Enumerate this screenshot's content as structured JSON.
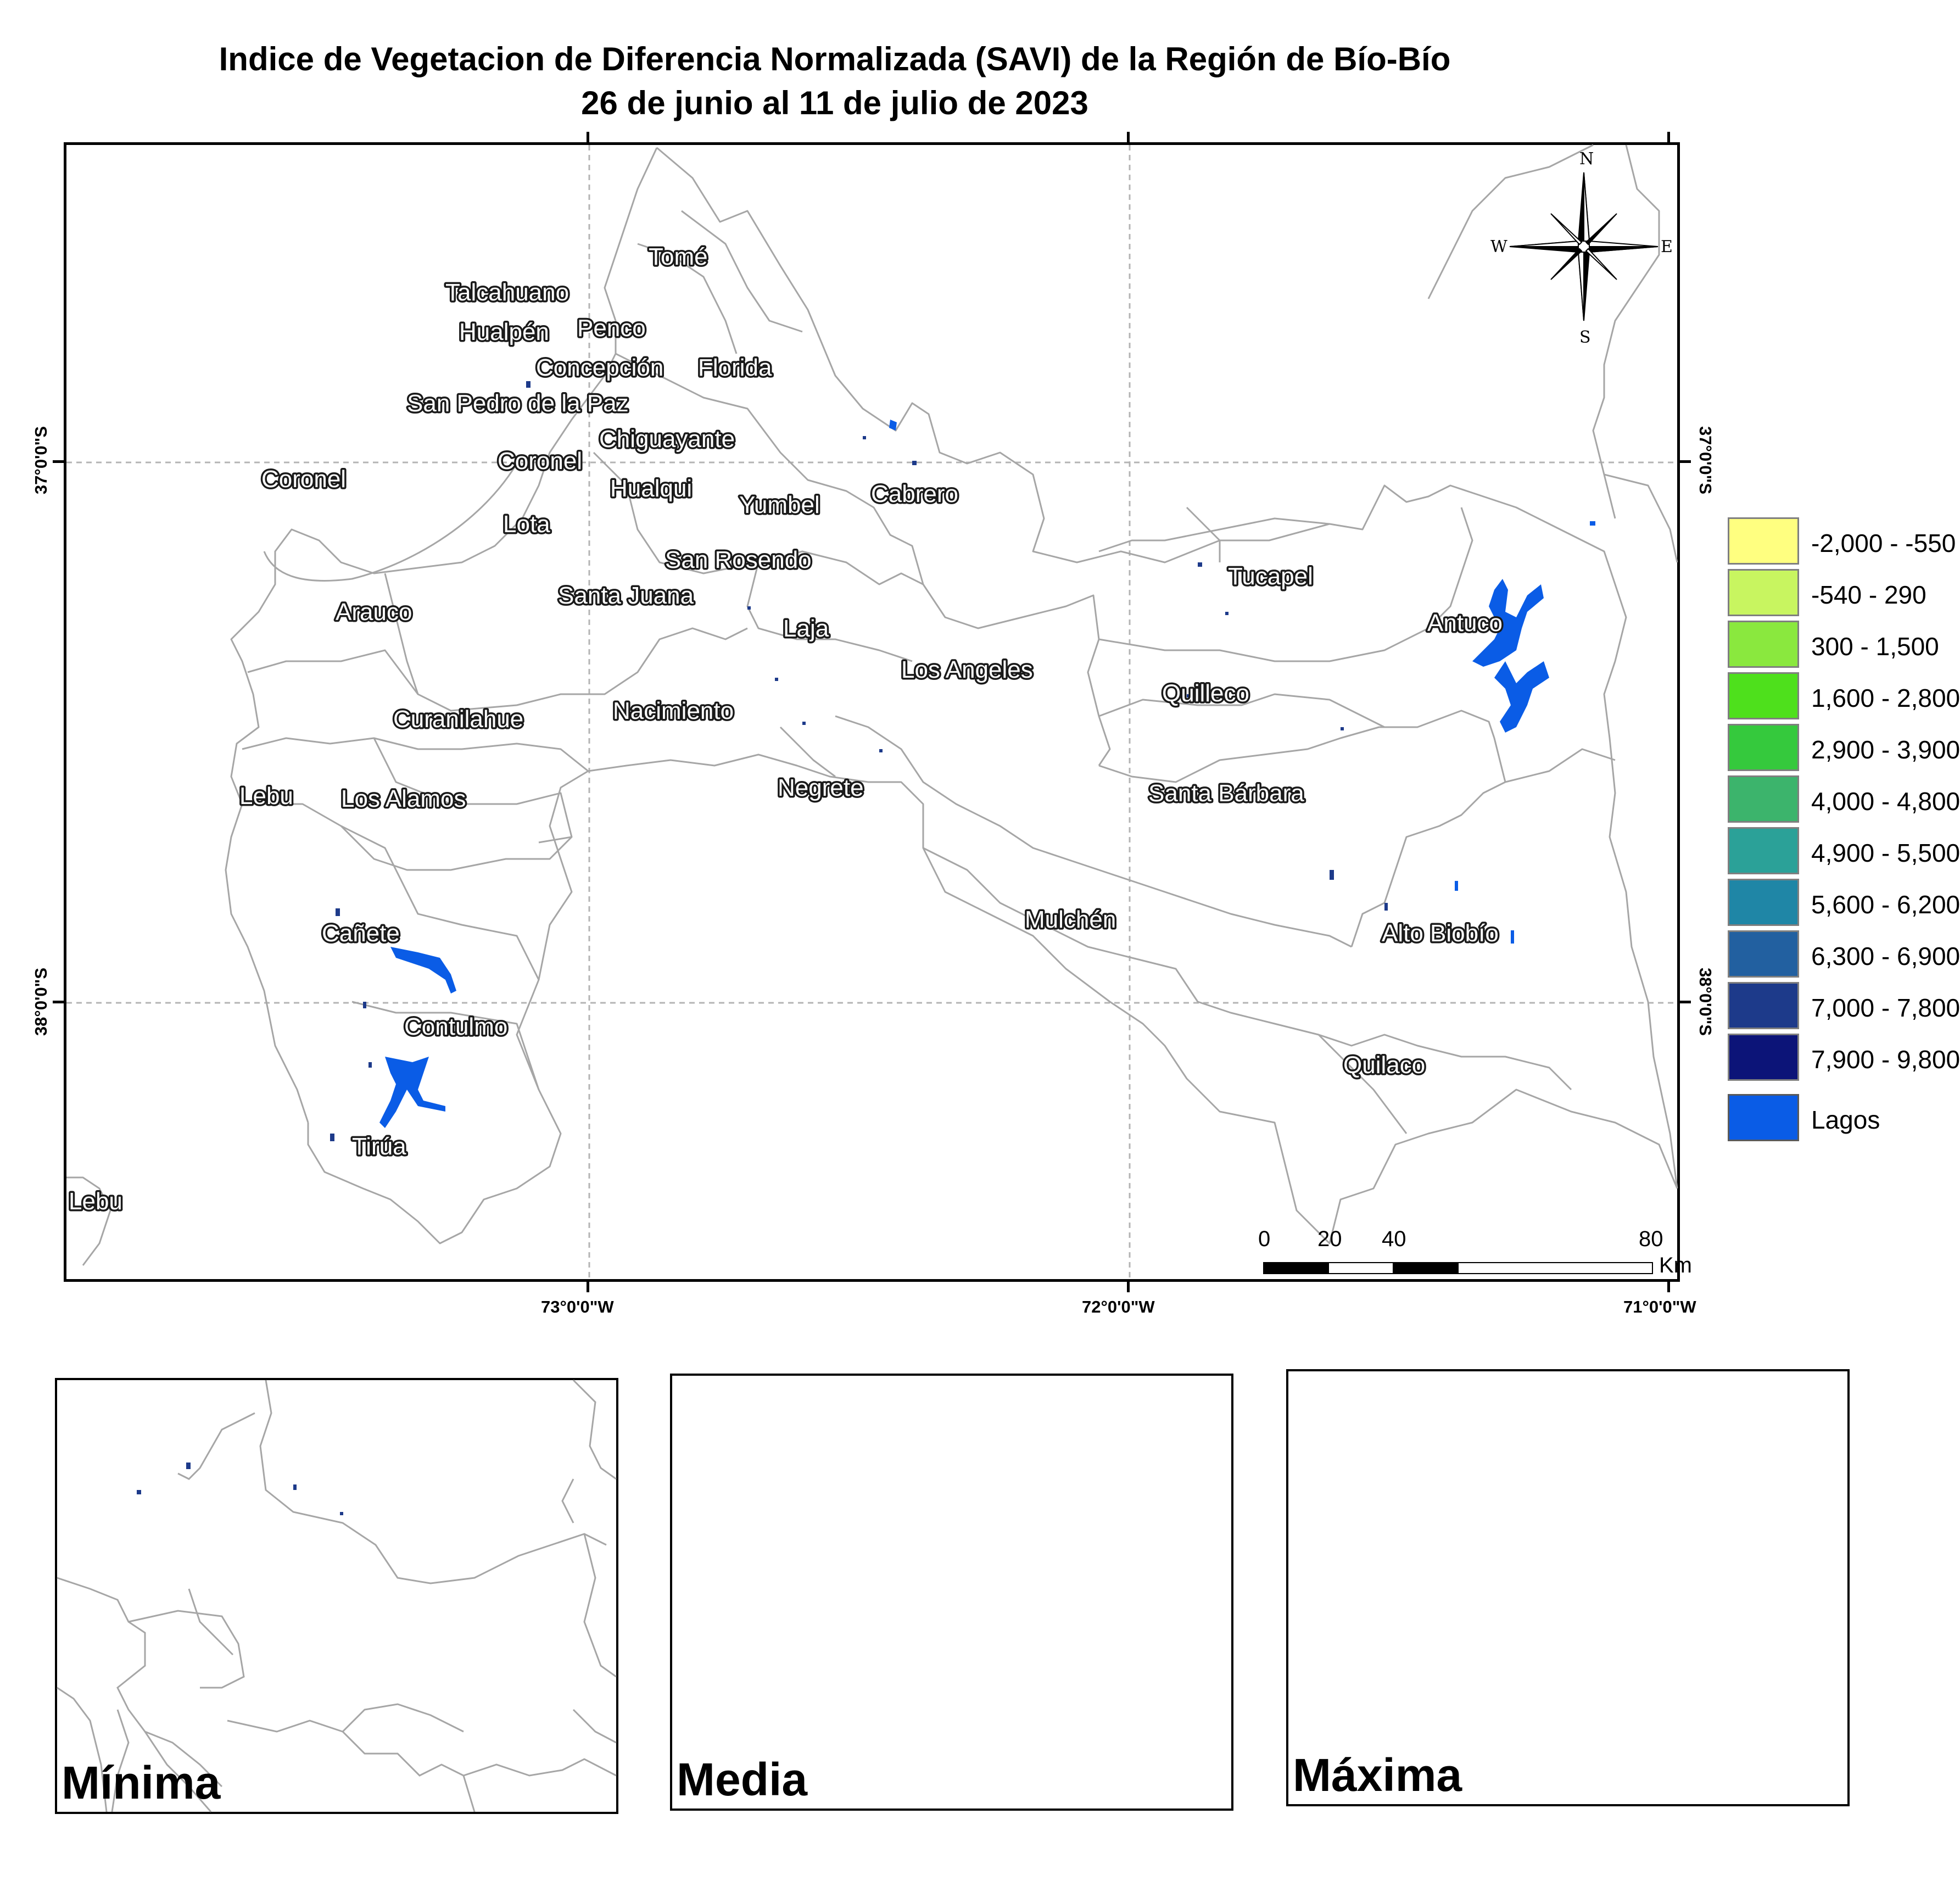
{
  "title": {
    "line1": "Indice de Vegetacion de Diferencia Normalizada (SAVI) de la Región de Bío-Bío",
    "line2": "26 de junio al 11 de julio de 2023"
  },
  "coordinates": {
    "top_lat": "37°0'0\"S",
    "bottom_lat": "38°0'0\"S",
    "lon_west": "73°0'0\"W",
    "lon_mid": "72°0'0\"W",
    "lon_east": "71°0'0\"W"
  },
  "north_arrow": {
    "n": "N",
    "s": "S",
    "e": "E",
    "w": "W"
  },
  "scale_bar": {
    "labels": [
      "0",
      "20",
      "40",
      "80"
    ],
    "unit": "Km"
  },
  "communes": [
    "Tomé",
    "Talcahuano",
    "Penco",
    "Hualpén",
    "Concepción",
    "Florida",
    "San Pedro de la Paz",
    "Chiguayante",
    "Coronel",
    "Coronel",
    "Hualqui",
    "Yumbel",
    "Cabrero",
    "Lota",
    "San Rosendo",
    "Tucapel",
    "Santa Juana",
    "Arauco",
    "Laja",
    "Antuco",
    "Los Angeles",
    "Nacimiento",
    "Quilleco",
    "Curanilahue",
    "Lebu",
    "Los Alamos",
    "Negrete",
    "Santa Bárbara",
    "Mulchén",
    "Cañete",
    "Alto Biobío",
    "Contulmo",
    "Quilaco",
    "Tirúa",
    "Lebu"
  ],
  "legend": [
    {
      "label": "-2,000 - -550",
      "color": "#ffff80"
    },
    {
      "label": "-540 - 290",
      "color": "#c8f560"
    },
    {
      "label": "300 - 1,500",
      "color": "#8ae83e"
    },
    {
      "label": "1,600 - 2,800",
      "color": "#4ee01c"
    },
    {
      "label": "2,900 - 3,900",
      "color": "#35c93d"
    },
    {
      "label": "4,000 - 4,800",
      "color": "#3cb46c"
    },
    {
      "label": "4,900 - 5,500",
      "color": "#2ba198"
    },
    {
      "label": "5,600 - 6,200",
      "color": "#1f86a6"
    },
    {
      "label": "6,300 - 6,900",
      "color": "#2260a0"
    },
    {
      "label": "7,000 - 7,800",
      "color": "#1d3a8a"
    },
    {
      "label": "7,900 - 9,800",
      "color": "#0c1478"
    },
    {
      "label": "Lagos",
      "color": "#0a5ce6"
    }
  ],
  "insets": {
    "min": "Mínima",
    "mean": "Media",
    "max": "Máxima"
  },
  "colors": {
    "lake": "#0a5ce6",
    "border": "#a6a6a6",
    "grid": "#b4b4b4"
  }
}
